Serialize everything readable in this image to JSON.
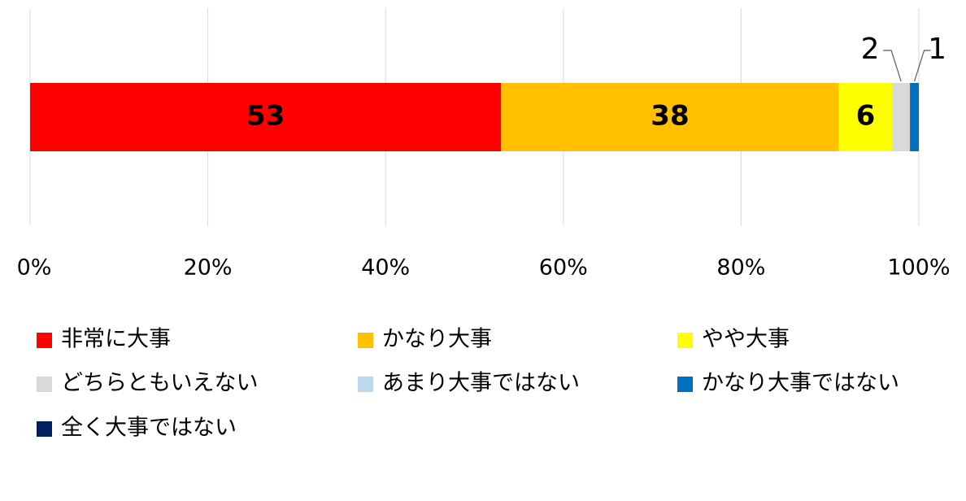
{
  "chart_data": {
    "type": "stacked-bar-horizontal",
    "series": [
      {
        "name": "非常に大事",
        "color": "#ff0000",
        "values": [
          53
        ]
      },
      {
        "name": "かなり大事",
        "color": "#ffc000",
        "values": [
          38
        ]
      },
      {
        "name": "やや大事",
        "color": "#ffff00",
        "values": [
          6
        ]
      },
      {
        "name": "どちらともいえない",
        "color": "#d9d9d9",
        "values": [
          2
        ]
      },
      {
        "name": "あまり大事ではない",
        "color": "#bdd7ee",
        "values": [
          0
        ]
      },
      {
        "name": "かなり大事ではない",
        "color": "#0070c0",
        "values": [
          1
        ]
      },
      {
        "name": "全く大事ではない",
        "color": "#002060",
        "values": [
          0
        ]
      }
    ],
    "xlim": [
      0,
      100
    ],
    "xticks": [
      {
        "value": 0,
        "label": "0%"
      },
      {
        "value": 20,
        "label": "20%"
      },
      {
        "value": 40,
        "label": "40%"
      },
      {
        "value": 60,
        "label": "60%"
      },
      {
        "value": 80,
        "label": "80%"
      },
      {
        "value": 100,
        "label": "100%"
      }
    ],
    "grid": true,
    "legend": "bottom"
  }
}
